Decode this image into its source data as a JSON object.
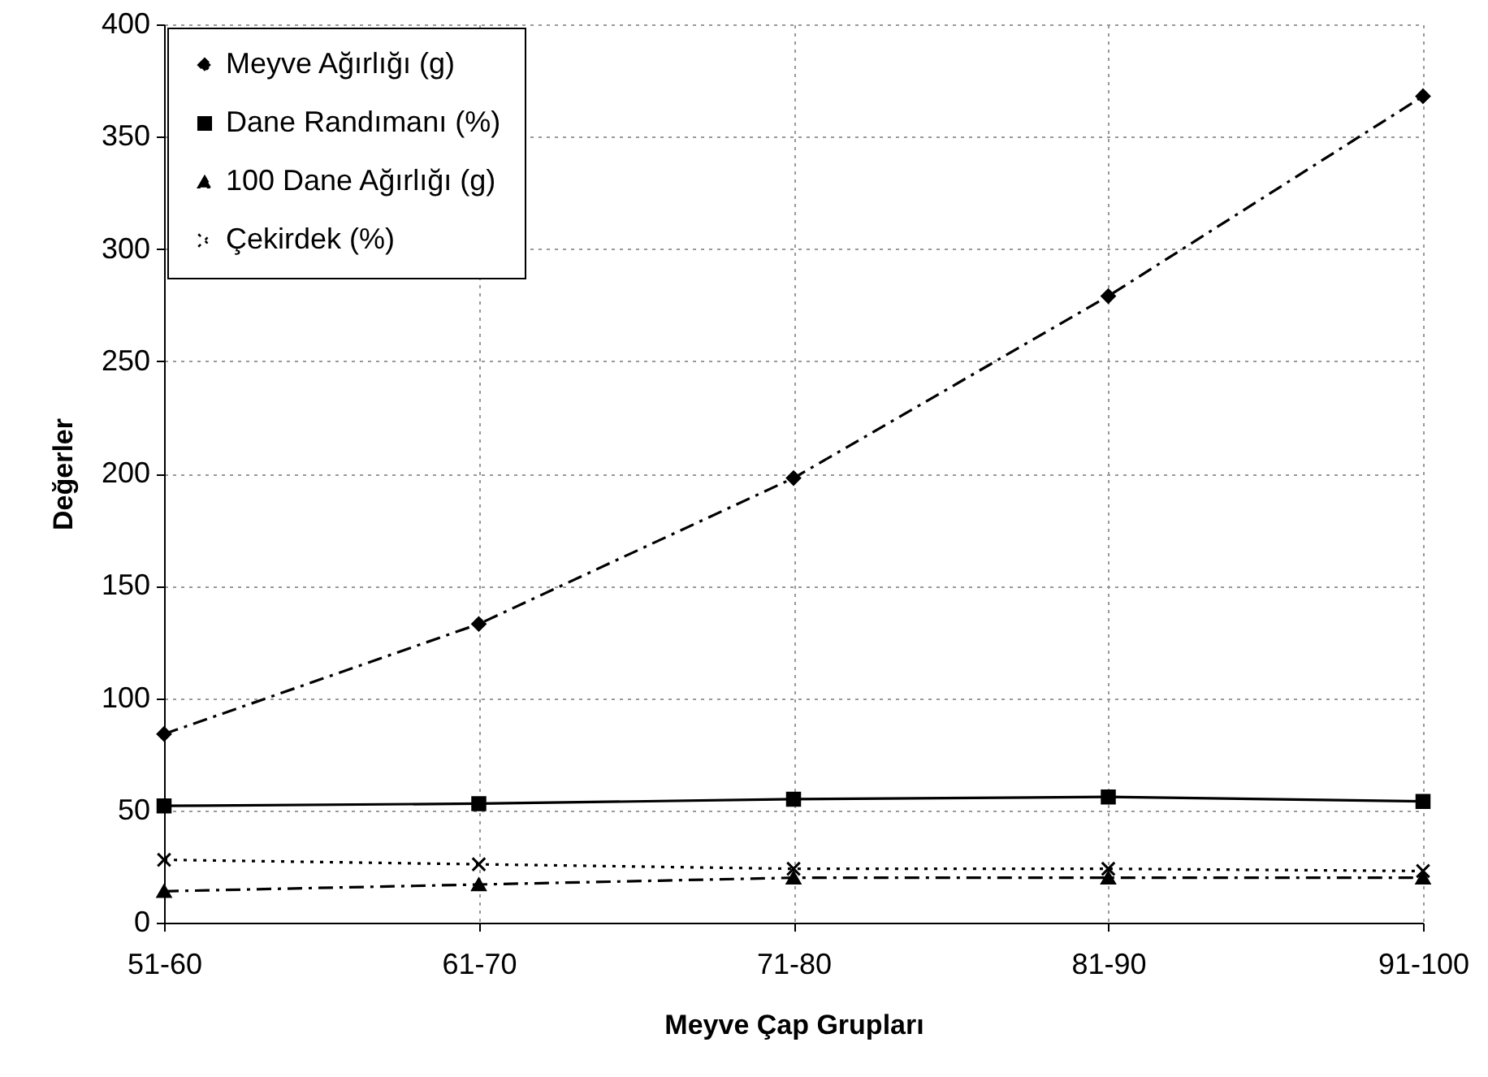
{
  "chart_data": {
    "type": "line",
    "xlabel": "Meyve Çap Grupları",
    "ylabel": "Değerler",
    "categories": [
      "51-60",
      "61-70",
      "71-80",
      "81-90",
      "91-100"
    ],
    "series": [
      {
        "name": "Meyve Ağırlığı (g)",
        "color": "#000000",
        "marker": "diamond",
        "line_style": "dashed",
        "values": [
          84,
          133,
          198,
          279,
          368
        ]
      },
      {
        "name": "Dane Randımanı (%)",
        "color": "#000000",
        "marker": "square",
        "line_style": "solid",
        "values": [
          52,
          53,
          55,
          56,
          54
        ]
      },
      {
        "name": "100 Dane Ağırlığı (g)",
        "color": "#000000",
        "marker": "triangle",
        "line_style": "dashed",
        "values": [
          14,
          17,
          20,
          20,
          20
        ]
      },
      {
        "name": "Çekirdek (%)",
        "color": "#000000",
        "marker": "cross",
        "line_style": "dotted",
        "values": [
          28,
          26,
          24,
          24,
          23
        ]
      }
    ],
    "ylim": [
      0,
      400
    ],
    "yticks": [
      0,
      50,
      100,
      150,
      200,
      250,
      300,
      350,
      400
    ],
    "grid": true,
    "legend": "top left"
  }
}
